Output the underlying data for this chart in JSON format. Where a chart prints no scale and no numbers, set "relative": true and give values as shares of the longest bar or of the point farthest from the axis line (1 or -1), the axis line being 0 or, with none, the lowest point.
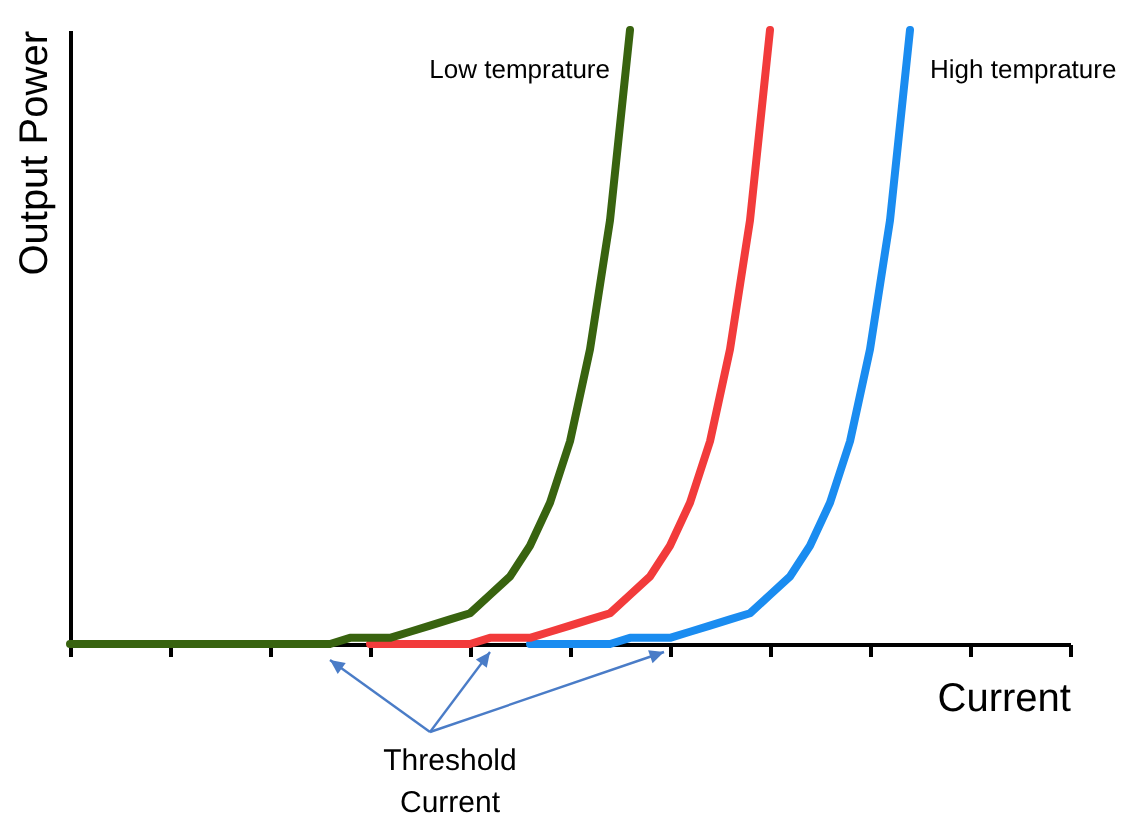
{
  "chart_data": {
    "type": "line",
    "relative": true,
    "xlabel": "Current",
    "ylabel": "Output Power",
    "annotations": [
      "Threshold Current"
    ],
    "categories": [
      null,
      null,
      null,
      null,
      null,
      null,
      null,
      null,
      null,
      null,
      null,
      null,
      null,
      null,
      null,
      null,
      null,
      null,
      null,
      null,
      null,
      null,
      null,
      null,
      null,
      null,
      null,
      null,
      null,
      null,
      null,
      null,
      null,
      null,
      null,
      null,
      null,
      null,
      null,
      null,
      null,
      null,
      null,
      null,
      null,
      null,
      null,
      null,
      null,
      null,
      null
    ],
    "series": [
      {
        "name": "Low temprature",
        "color": "#38630f",
        "values": [
          0,
          0,
          0,
          0,
          0,
          0,
          0,
          0,
          0,
          0,
          0,
          0,
          0,
          0,
          0.01,
          0.01,
          0.01,
          0.02,
          0.03,
          0.04,
          0.05,
          0.08,
          0.11,
          0.16,
          0.23,
          0.33,
          0.48,
          0.69,
          1,
          null,
          null,
          null,
          null,
          null,
          null,
          null,
          null,
          null,
          null,
          null,
          null,
          null,
          null,
          null,
          null,
          null,
          null,
          null,
          null,
          null,
          null
        ]
      },
      {
        "color": "#f23b3b",
        "values": [
          null,
          null,
          null,
          null,
          null,
          null,
          null,
          null,
          null,
          null,
          null,
          null,
          null,
          null,
          null,
          0,
          0,
          0,
          0,
          0,
          0,
          0.01,
          0.01,
          0.01,
          0.02,
          0.03,
          0.04,
          0.05,
          0.08,
          0.11,
          0.16,
          0.23,
          0.33,
          0.48,
          0.69,
          1,
          null,
          null,
          null,
          null,
          null,
          null,
          null,
          null,
          null,
          null,
          null,
          null,
          null,
          null,
          null
        ]
      },
      {
        "name": "High temprature",
        "color": "#1a8cf0",
        "values": [
          null,
          null,
          null,
          null,
          null,
          null,
          null,
          null,
          null,
          null,
          null,
          null,
          null,
          null,
          null,
          null,
          null,
          null,
          null,
          null,
          null,
          null,
          null,
          0,
          0,
          0,
          0,
          0,
          0.01,
          0.01,
          0.01,
          0.02,
          0.03,
          0.04,
          0.05,
          0.08,
          0.11,
          0.16,
          0.23,
          0.33,
          0.48,
          0.69,
          1,
          null,
          null,
          null,
          null,
          null,
          null,
          null,
          null
        ]
      }
    ]
  }
}
